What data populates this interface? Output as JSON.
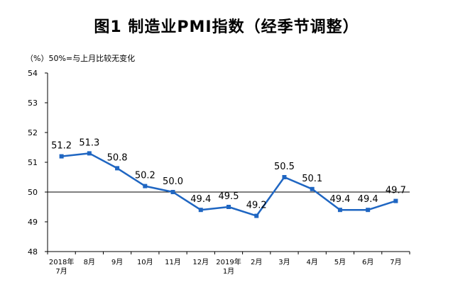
{
  "title": "图1  制造业PMI指数（经季节调整）",
  "unit_note": "（%）50%=与上月比较无变化",
  "colors": {
    "line": "#1f66c2",
    "marker": "#1f66c2",
    "axis": "#000000",
    "grid": "#bfbfbf",
    "text": "#000000"
  },
  "chart_data": {
    "type": "line",
    "title": "图1  制造业PMI指数（经季节调整）",
    "ylabel": "（%）",
    "xlabel": "",
    "ylim": [
      48,
      54
    ],
    "yticks": [
      48,
      49,
      50,
      51,
      52,
      53,
      54
    ],
    "reference_line": 50,
    "categories": [
      [
        "2018年",
        "7月"
      ],
      [
        "8月"
      ],
      [
        "9月"
      ],
      [
        "10月"
      ],
      [
        "11月"
      ],
      [
        "12月"
      ],
      [
        "2019年",
        "1月"
      ],
      [
        "2月"
      ],
      [
        "3月"
      ],
      [
        "4月"
      ],
      [
        "5月"
      ],
      [
        "6月"
      ],
      [
        "7月"
      ]
    ],
    "series": [
      {
        "name": "制造业PMI",
        "values": [
          51.2,
          51.3,
          50.8,
          50.2,
          50.0,
          49.4,
          49.5,
          49.2,
          50.5,
          50.1,
          49.4,
          49.4,
          49.7
        ],
        "labels": [
          "51.2",
          "51.3",
          "50.8",
          "50.2",
          "50.0",
          "49.4",
          "49.5",
          "49.2",
          "50.5",
          "50.1",
          "49.4",
          "49.4",
          "49.7"
        ]
      }
    ]
  }
}
